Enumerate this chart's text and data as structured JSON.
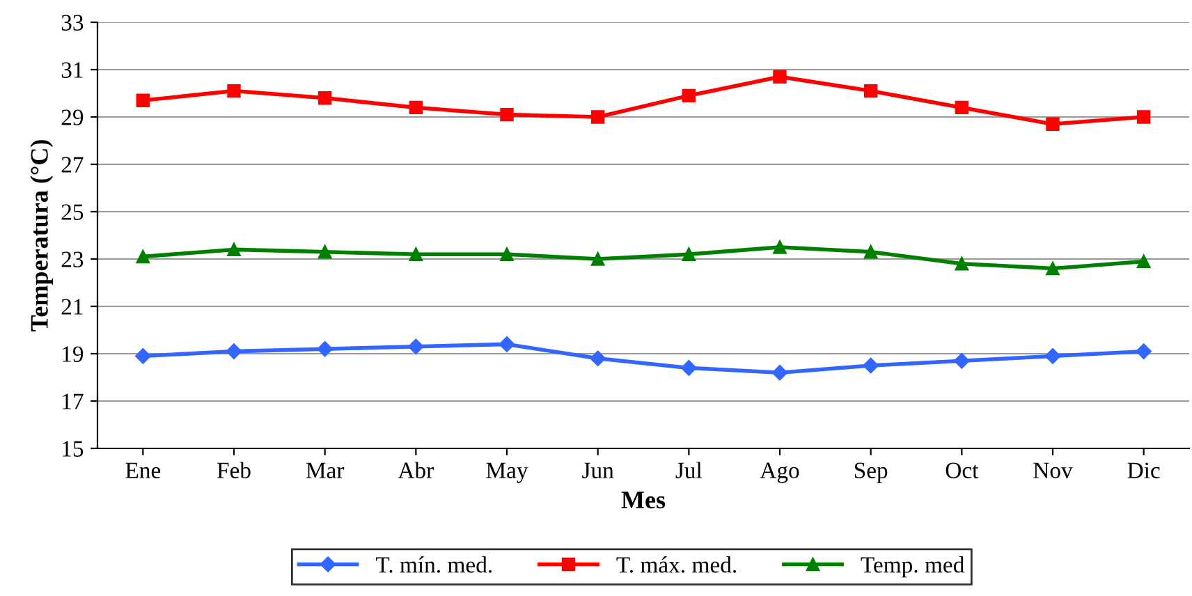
{
  "chart_data": {
    "type": "line",
    "xlabel": "Mes",
    "ylabel": "Temperatura (°C)",
    "categories": [
      "Ene",
      "Feb",
      "Mar",
      "Abr",
      "May",
      "Jun",
      "Jul",
      "Ago",
      "Sep",
      "Oct",
      "Nov",
      "Dic"
    ],
    "series": [
      {
        "name": "T. mín. med.",
        "color": "#3366ff",
        "marker": "diamond",
        "values": [
          18.9,
          19.1,
          19.2,
          19.3,
          19.4,
          18.8,
          18.4,
          18.2,
          18.5,
          18.7,
          18.9,
          19.1
        ]
      },
      {
        "name": "T. máx. med.",
        "color": "#ff0000",
        "marker": "square",
        "values": [
          29.7,
          30.1,
          29.8,
          29.4,
          29.1,
          29.0,
          29.9,
          30.7,
          30.1,
          29.4,
          28.7,
          29.0
        ]
      },
      {
        "name": "Temp. med",
        "color": "#008000",
        "marker": "triangle",
        "values": [
          23.1,
          23.4,
          23.3,
          23.2,
          23.2,
          23.0,
          23.2,
          23.5,
          23.3,
          22.8,
          22.6,
          22.9
        ]
      }
    ],
    "ylim": [
      15,
      33
    ],
    "yticks": [
      15,
      17,
      19,
      21,
      23,
      25,
      27,
      29,
      31,
      33
    ],
    "grid": "y",
    "legend": "bottom",
    "line_style": "solid"
  }
}
